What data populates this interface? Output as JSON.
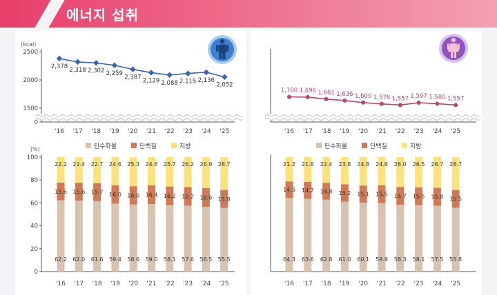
{
  "header": {
    "title": "에너지 섭취"
  },
  "colors": {
    "male": "#3a62b0",
    "female": "#b8456e",
    "carb": "#d8c3b1",
    "protein": "#cf7a55",
    "fat": "#fbe27d"
  },
  "chart_data": [
    {
      "type": "line",
      "panel": "male-energy",
      "x": [
        "'16",
        "'17",
        "'18",
        "'19",
        "'20",
        "'21",
        "'22",
        "'23",
        "'24",
        "'25"
      ],
      "series": [
        {
          "values": [
            2378,
            2318,
            2302,
            2259,
            2187,
            2129,
            2088,
            2115,
            2136,
            2052
          ],
          "labels": [
            "2,378",
            "2,318",
            "2,302",
            "2,259",
            "2,187",
            "2,129",
            "2,088",
            "2,115",
            "2,136",
            "2,052"
          ]
        }
      ],
      "yunit": "(kcal)",
      "yticks": [
        "2500",
        "2000",
        "1500",
        "0"
      ],
      "ylim": [
        1500,
        2500
      ],
      "axis_break": true
    },
    {
      "type": "line",
      "panel": "female-energy",
      "x": [
        "'16",
        "'17",
        "'18",
        "'19",
        "'20",
        "'21",
        "'22",
        "'23",
        "'24",
        "'25"
      ],
      "series": [
        {
          "values": [
            1700,
            1696,
            1661,
            1636,
            1600,
            1576,
            1557,
            1597,
            1580,
            1557
          ],
          "labels": [
            "1,700",
            "1,696",
            "1,661",
            "1,636",
            "1,600",
            "1,576",
            "1,557",
            "1,597",
            "1,580",
            "1,557"
          ]
        }
      ],
      "ylim": [
        1500,
        2500
      ],
      "axis_break": true
    },
    {
      "type": "bar",
      "stacked": true,
      "panel": "male-macro",
      "categories": [
        "'16",
        "'17",
        "'18",
        "'19",
        "'20",
        "'21",
        "'22",
        "'23",
        "'24",
        "'25"
      ],
      "legend": [
        "탄수화물",
        "단백질",
        "지방"
      ],
      "yunit": "(%)",
      "yticks": [
        "100",
        "80",
        "60",
        "40",
        "20",
        "0"
      ],
      "ylim": [
        0,
        100
      ],
      "series": [
        {
          "name": "탄수화물",
          "values": [
            62.2,
            62.0,
            61.6,
            59.4,
            58.6,
            59.0,
            58.1,
            57.6,
            56.5,
            55.5
          ],
          "labels": [
            "62.2",
            "62.0",
            "61.6",
            "59.4",
            "58.6",
            "59.0",
            "58.1",
            "57.6",
            "56.5",
            "55.5"
          ]
        },
        {
          "name": "단백질",
          "values": [
            15.6,
            15.6,
            15.7,
            16.0,
            16.0,
            16.4,
            16.2,
            16.2,
            16.6,
            15.8
          ],
          "labels": [
            "15.6",
            "15.6",
            "15.7",
            "16.0",
            "16.0",
            "16.4",
            "16.2",
            "16.2",
            "16.6",
            "15.8"
          ]
        },
        {
          "name": "지방",
          "values": [
            22.2,
            22.4,
            22.7,
            24.6,
            25.3,
            24.6,
            25.7,
            26.2,
            26.9,
            28.7
          ],
          "labels": [
            "22.2",
            "22.4",
            "22.7",
            "24.6",
            "25.3",
            "24.6",
            "25.7",
            "26.2",
            "26.9",
            "28.7"
          ]
        }
      ]
    },
    {
      "type": "bar",
      "stacked": true,
      "panel": "female-macro",
      "categories": [
        "'16",
        "'17",
        "'18",
        "'19",
        "'20",
        "'21",
        "'22",
        "'23",
        "'24",
        "'25"
      ],
      "legend": [
        "탄수화물",
        "단백질",
        "지방"
      ],
      "ylim": [
        0,
        100
      ],
      "series": [
        {
          "name": "탄수화물",
          "values": [
            64.3,
            63.6,
            62.8,
            61.0,
            60.1,
            59.9,
            58.3,
            58.1,
            57.5,
            55.8
          ],
          "labels": [
            "64.3",
            "63.6",
            "62.8",
            "61.0",
            "60.1",
            "59.9",
            "58.3",
            "58.1",
            "57.5",
            "55.8"
          ]
        },
        {
          "name": "단백질",
          "values": [
            14.5,
            14.7,
            14.8,
            15.2,
            15.1,
            15.5,
            15.7,
            15.5,
            15.8,
            15.5
          ],
          "labels": [
            "14.5",
            "14.7",
            "14.8",
            "15.2",
            "15.1",
            "15.5",
            "15.7",
            "15.5",
            "15.8",
            "15.5"
          ]
        },
        {
          "name": "지방",
          "values": [
            21.2,
            21.8,
            22.4,
            23.8,
            24.8,
            24.6,
            26.0,
            26.5,
            26.7,
            28.7
          ],
          "labels": [
            "21.2",
            "21.8",
            "22.4",
            "23.8",
            "24.8",
            "24.6",
            "26.0",
            "26.5",
            "26.7",
            "28.7"
          ]
        }
      ]
    }
  ]
}
